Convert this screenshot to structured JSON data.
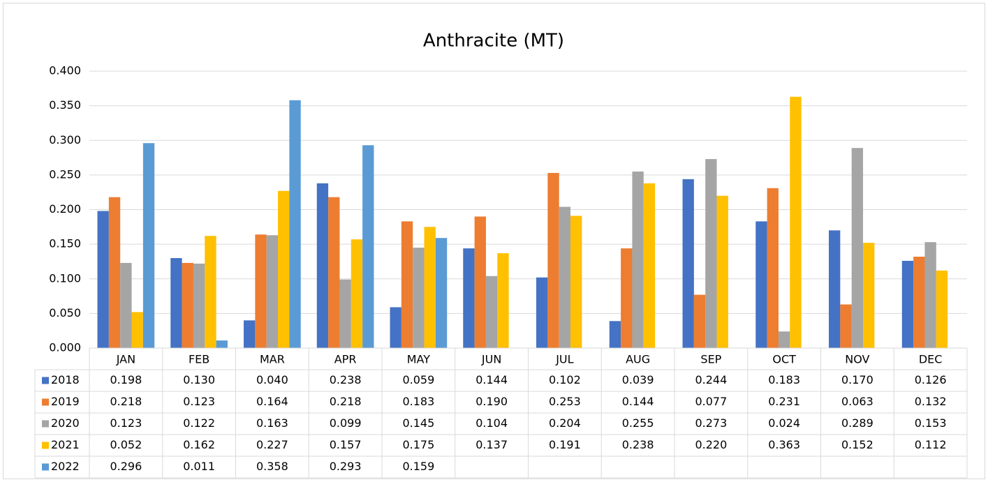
{
  "chart_data": {
    "type": "bar",
    "title": "Anthracite (MT)",
    "categories": [
      "JAN",
      "FEB",
      "MAR",
      "APR",
      "MAY",
      "JUN",
      "JUL",
      "AUG",
      "SEP",
      "OCT",
      "NOV",
      "DEC"
    ],
    "series": [
      {
        "name": "2018",
        "color": "#4472c4",
        "values": [
          0.198,
          0.13,
          0.04,
          0.238,
          0.059,
          0.144,
          0.102,
          0.039,
          0.244,
          0.183,
          0.17,
          0.126
        ],
        "value_labels": [
          "0.198",
          "0.130",
          "0.040",
          "0.238",
          "0.059",
          "0.144",
          "0.102",
          "0.039",
          "0.244",
          "0.183",
          "0.170",
          "0.126"
        ]
      },
      {
        "name": "2019",
        "color": "#ed7d31",
        "values": [
          0.218,
          0.123,
          0.164,
          0.218,
          0.183,
          0.19,
          0.253,
          0.144,
          0.077,
          0.231,
          0.063,
          0.132
        ],
        "value_labels": [
          "0.218",
          "0.123",
          "0.164",
          "0.218",
          "0.183",
          "0.190",
          "0.253",
          "0.144",
          "0.077",
          "0.231",
          "0.063",
          "0.132"
        ]
      },
      {
        "name": "2020",
        "color": "#a5a5a5",
        "values": [
          0.123,
          0.122,
          0.163,
          0.099,
          0.145,
          0.104,
          0.204,
          0.255,
          0.273,
          0.024,
          0.289,
          0.153
        ],
        "value_labels": [
          "0.123",
          "0.122",
          "0.163",
          "0.099",
          "0.145",
          "0.104",
          "0.204",
          "0.255",
          "0.273",
          "0.024",
          "0.289",
          "0.153"
        ]
      },
      {
        "name": "2021",
        "color": "#ffc000",
        "values": [
          0.052,
          0.162,
          0.227,
          0.157,
          0.175,
          0.137,
          0.191,
          0.238,
          0.22,
          0.363,
          0.152,
          0.112
        ],
        "value_labels": [
          "0.052",
          "0.162",
          "0.227",
          "0.157",
          "0.175",
          "0.137",
          "0.191",
          "0.238",
          "0.220",
          "0.363",
          "0.152",
          "0.112"
        ]
      },
      {
        "name": "2022",
        "color": "#5b9bd5",
        "values": [
          0.296,
          0.011,
          0.358,
          0.293,
          0.159,
          null,
          null,
          null,
          null,
          null,
          null,
          null
        ],
        "value_labels": [
          "0.296",
          "0.011",
          "0.358",
          "0.293",
          "0.159",
          null,
          null,
          null,
          null,
          null,
          null,
          null
        ]
      }
    ],
    "ylim": [
      0,
      0.4
    ],
    "yticks": [
      {
        "value": 0,
        "label": "0.000"
      },
      {
        "value": 0.05,
        "label": "0.050"
      },
      {
        "value": 0.1,
        "label": "0.100"
      },
      {
        "value": 0.15,
        "label": "0.150"
      },
      {
        "value": 0.2,
        "label": "0.200"
      },
      {
        "value": 0.25,
        "label": "0.250"
      },
      {
        "value": 0.3,
        "label": "0.300"
      },
      {
        "value": 0.35,
        "label": "0.350"
      },
      {
        "value": 0.4,
        "label": "0.400"
      }
    ],
    "grid": true
  }
}
